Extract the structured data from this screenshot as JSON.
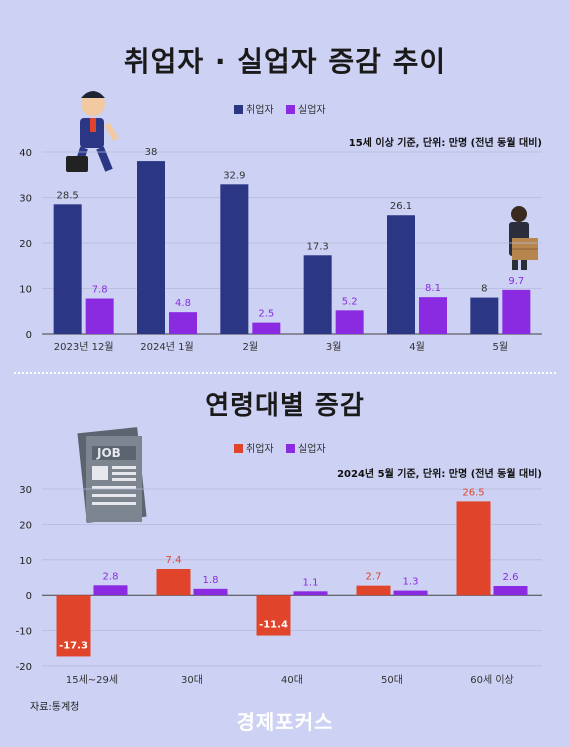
{
  "colors": {
    "employed1": "#2b3684",
    "unemployed": "#8a2be2",
    "employed2": "#e0452b",
    "grid": "#b6b9d9",
    "axis": "#444444"
  },
  "source": "자료:통계청",
  "logo": "경제포커스",
  "chart_data": [
    {
      "type": "bar",
      "title": "취업자 · 실업자 증감 추이",
      "note": "15세 이상 기준, 단위: 만명 (전년 동월 대비)",
      "categories": [
        "2023년 12월",
        "2024년 1월",
        "2월",
        "3월",
        "4월",
        "5월"
      ],
      "series": [
        {
          "name": "취업자",
          "values": [
            28.5,
            38,
            32.9,
            17.3,
            26.1,
            8
          ]
        },
        {
          "name": "실업자",
          "values": [
            7.8,
            4.8,
            2.5,
            5.2,
            8.1,
            9.7
          ]
        }
      ],
      "ylim": [
        0,
        40
      ],
      "yticks": [
        0,
        10,
        20,
        30,
        40
      ],
      "grid": true,
      "legend": "top-center"
    },
    {
      "type": "bar",
      "title": "연령대별 증감",
      "note": "2024년 5월 기준, 단위: 만명 (전년 동월 대비)",
      "categories": [
        "15세~29세",
        "30대",
        "40대",
        "50대",
        "60세 이상"
      ],
      "series": [
        {
          "name": "취업자",
          "values": [
            -17.3,
            7.4,
            -11.4,
            2.7,
            26.5
          ]
        },
        {
          "name": "실업자",
          "values": [
            2.8,
            1.8,
            1.1,
            1.3,
            2.6
          ]
        }
      ],
      "ylim": [
        -20,
        30
      ],
      "yticks": [
        -20,
        -10,
        0,
        10,
        20,
        30
      ],
      "grid": true,
      "legend": "top-center"
    }
  ]
}
